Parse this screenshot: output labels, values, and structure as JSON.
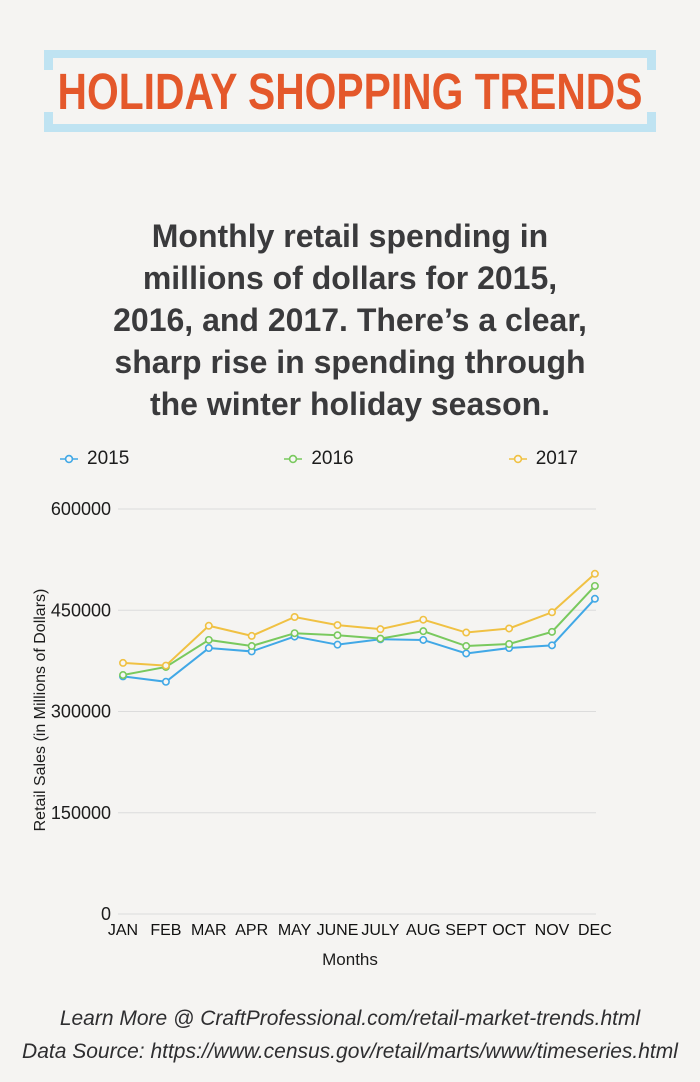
{
  "page": {
    "background_color": "#f5f4f2"
  },
  "header": {
    "title": "HOLIDAY SHOPPING TRENDS",
    "title_color": "#e4582b",
    "bracket_color": "#bfe3f2"
  },
  "intro": {
    "text": "Monthly retail spending in\nmillions of dollars for 2015,\n2016, and 2017. There’s a clear,\nsharp rise in spending through\nthe winter holiday season."
  },
  "chart_data": {
    "type": "line",
    "title": "",
    "xlabel": "Months",
    "ylabel": "Retail Sales (in Millions of Dollars)",
    "categories": [
      "JAN",
      "FEB",
      "MAR",
      "APR",
      "MAY",
      "JUNE",
      "JULY",
      "AUG",
      "SEPT",
      "OCT",
      "NOV",
      "DEC"
    ],
    "yticks": [
      0,
      150000,
      300000,
      450000,
      600000
    ],
    "ylim": [
      0,
      600000
    ],
    "grid": true,
    "legend_position": "top",
    "gridline_color": "#dcdcdc",
    "series": [
      {
        "name": "2015",
        "color": "#41a8e6",
        "values": [
          352000,
          344000,
          394000,
          389000,
          411000,
          399000,
          407000,
          406000,
          386000,
          394000,
          398000,
          467000
        ]
      },
      {
        "name": "2016",
        "color": "#79c95e",
        "values": [
          354000,
          366000,
          406000,
          397000,
          416000,
          413000,
          408000,
          419000,
          397000,
          400000,
          418000,
          486000
        ]
      },
      {
        "name": "2017",
        "color": "#f0c143",
        "values": [
          372000,
          368000,
          427000,
          412000,
          440000,
          428000,
          422000,
          436000,
          417000,
          423000,
          447000,
          504000
        ]
      }
    ]
  },
  "footer": {
    "line1": "Learn More @ CraftProfessional.com/retail-market-trends.html",
    "line2": "Data Source: https://www.census.gov/retail/marts/www/timeseries.html"
  }
}
